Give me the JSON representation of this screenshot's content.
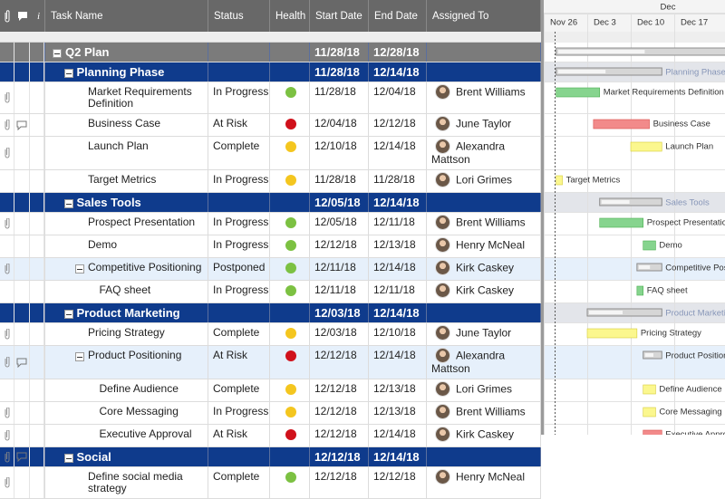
{
  "header": {
    "columns": [
      "Task Name",
      "Status",
      "Health",
      "Start Date",
      "End Date",
      "Assigned To"
    ]
  },
  "gantt": {
    "month": "Dec",
    "weeks": [
      "Nov 26",
      "Dec 3",
      "Dec 10",
      "Dec 17"
    ]
  },
  "rows": [
    {
      "task": "Q2 Plan",
      "level": 0,
      "parent": true,
      "start": "11/28/18",
      "end": "12/28/18"
    },
    {
      "task": "Planning Phase",
      "level": 1,
      "parent": true,
      "start": "11/28/18",
      "end": "12/14/18"
    },
    {
      "task": "Market Requirements Definition",
      "level": 2,
      "status": "In Progress",
      "health": "green",
      "start": "11/28/18",
      "end": "12/04/18",
      "assigned": "Brent Williams",
      "attachment": true
    },
    {
      "task": "Business Case",
      "level": 2,
      "status": "At Risk",
      "health": "red",
      "start": "12/04/18",
      "end": "12/12/18",
      "assigned": "June Taylor",
      "attachment": true,
      "comment": true
    },
    {
      "task": "Launch Plan",
      "level": 2,
      "status": "Complete",
      "health": "yellow",
      "start": "12/10/18",
      "end": "12/14/18",
      "assigned": "Alexandra Mattson",
      "attachment": true
    },
    {
      "task": "Target Metrics",
      "level": 2,
      "status": "In Progress",
      "health": "yellow",
      "start": "11/28/18",
      "end": "11/28/18",
      "assigned": "Lori Grimes"
    },
    {
      "task": "Sales Tools",
      "level": 1,
      "parent": true,
      "start": "12/05/18",
      "end": "12/14/18"
    },
    {
      "task": "Prospect Presentation",
      "level": 2,
      "status": "In Progress",
      "health": "green",
      "start": "12/05/18",
      "end": "12/11/18",
      "assigned": "Brent Williams",
      "attachment": true
    },
    {
      "task": "Demo",
      "level": 2,
      "status": "In Progress",
      "health": "green",
      "start": "12/12/18",
      "end": "12/13/18",
      "assigned": "Henry McNeal"
    },
    {
      "task": "Competitive Positioning",
      "level": 2,
      "parent": true,
      "highlight": true,
      "status": "Postponed",
      "health": "green",
      "start": "12/11/18",
      "end": "12/14/18",
      "assigned": "Kirk Caskey",
      "attachment": true
    },
    {
      "task": "FAQ sheet",
      "level": 3,
      "status": "In Progress",
      "health": "green",
      "start": "12/11/18",
      "end": "12/11/18",
      "assigned": "Kirk Caskey"
    },
    {
      "task": "Product Marketing",
      "level": 1,
      "parent": true,
      "start": "12/03/18",
      "end": "12/14/18"
    },
    {
      "task": "Pricing Strategy",
      "level": 2,
      "status": "Complete",
      "health": "yellow",
      "start": "12/03/18",
      "end": "12/10/18",
      "assigned": "June Taylor",
      "attachment": true
    },
    {
      "task": "Product Positioning",
      "level": 2,
      "parent": true,
      "highlight": true,
      "status": "At Risk",
      "health": "red",
      "start": "12/12/18",
      "end": "12/14/18",
      "assigned": "Alexandra Mattson",
      "attachment": true,
      "comment": true
    },
    {
      "task": "Define Audience",
      "level": 3,
      "status": "Complete",
      "health": "yellow",
      "start": "12/12/18",
      "end": "12/13/18",
      "assigned": "Lori Grimes"
    },
    {
      "task": "Core Messaging",
      "level": 3,
      "status": "In Progress",
      "health": "yellow",
      "start": "12/12/18",
      "end": "12/13/18",
      "assigned": "Brent Williams",
      "attachment": true
    },
    {
      "task": "Executive Approval",
      "level": 3,
      "status": "At Risk",
      "health": "red",
      "start": "12/12/18",
      "end": "12/14/18",
      "assigned": "Kirk Caskey",
      "attachment": true
    },
    {
      "task": "Social",
      "level": 1,
      "parent": true,
      "start": "12/12/18",
      "end": "12/14/18",
      "attachment": true,
      "comment": true
    },
    {
      "task": "Define social media strategy",
      "level": 2,
      "status": "Complete",
      "health": "green",
      "start": "12/12/18",
      "end": "12/12/18",
      "assigned": "Henry McNeal",
      "attachment": true
    }
  ]
}
